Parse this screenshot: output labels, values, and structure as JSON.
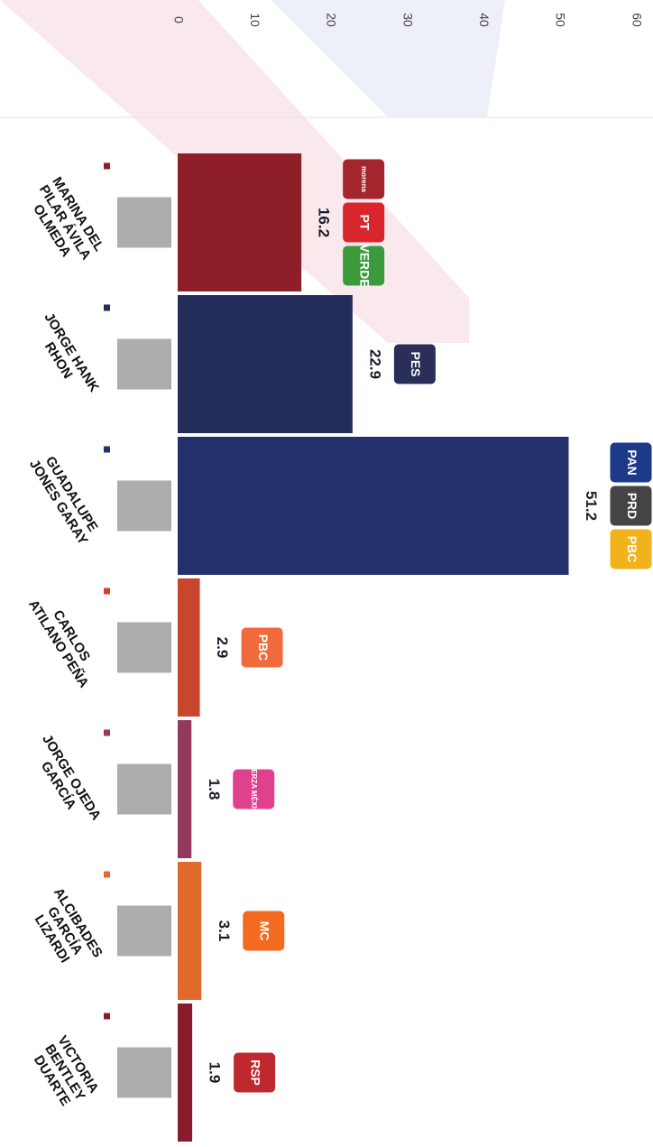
{
  "chart_data": {
    "type": "bar",
    "categories": [
      "MARINA DEL PILAR ÁVILA OLMEDA",
      "JORGE HANK RHON",
      "GUADALUPE JONES GARAY",
      "CARLOS ATILANO PEÑA",
      "JORGE OJEDA GARCÍA",
      "ALCIBADES GARCÍA LIZARDI",
      "VICTORIA BENTLEY DUARTE"
    ],
    "values": [
      16.2,
      22.9,
      51.2,
      2.9,
      1.8,
      3.1,
      1.9
    ],
    "colors": [
      "#8e1f28",
      "#242c5c",
      "#23306c",
      "#c9452e",
      "#93395e",
      "#e0692c",
      "#8a1b2c"
    ],
    "party_labels": [
      [
        "morena",
        "PT",
        "VERDE"
      ],
      [
        "PES"
      ],
      [
        "PAN",
        "PRD",
        "PBC"
      ],
      [
        "PBC"
      ],
      [
        "FUERZA MÉXICO"
      ],
      [
        "MC"
      ],
      [
        "RSP"
      ]
    ],
    "party_colors": [
      [
        "#a3262e",
        "#d8262c",
        "#3a9a3c"
      ],
      [
        "#2a2f5a"
      ],
      [
        "#1d3a8a",
        "#444444",
        "#f2b21b"
      ],
      [
        "#f06a3c"
      ],
      [
        "#e0418f"
      ],
      [
        "#f26b21"
      ],
      [
        "#c0282f"
      ]
    ],
    "xlim": [
      0,
      60
    ],
    "xticks": [
      0,
      10,
      20,
      30,
      40,
      50,
      60
    ],
    "grid": false
  }
}
